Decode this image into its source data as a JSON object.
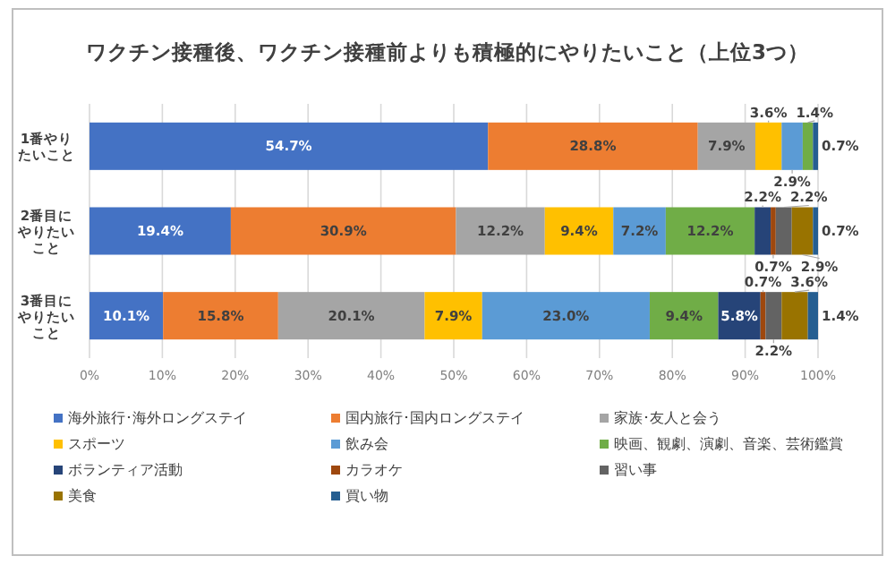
{
  "chart_data": {
    "type": "bar",
    "orientation": "horizontal",
    "stacked": true,
    "title": "ワクチン接種後、ワクチン接種前よりも積極的にやりたいこと（上位3つ）",
    "categories": [
      "1番やりたいこと",
      "2番目にやりたいこと",
      "3番目にやりたいこと"
    ],
    "xlim": [
      0,
      100
    ],
    "xticks": [
      {
        "value": 0,
        "label": "0%"
      },
      {
        "value": 10,
        "label": "10%"
      },
      {
        "value": 20,
        "label": "20%"
      },
      {
        "value": 30,
        "label": "30%"
      },
      {
        "value": 40,
        "label": "40%"
      },
      {
        "value": 50,
        "label": "50%"
      },
      {
        "value": 60,
        "label": "60%"
      },
      {
        "value": 70,
        "label": "70%"
      },
      {
        "value": 80,
        "label": "80%"
      },
      {
        "value": 90,
        "label": "90%"
      },
      {
        "value": 100,
        "label": "100%"
      }
    ],
    "grid": "x",
    "legend": "bottom",
    "series": [
      {
        "name": "海外旅行･海外ロングステイ",
        "color": "#4472c4",
        "values": [
          54.7,
          19.4,
          10.1
        ],
        "value_labels": [
          "54.7%",
          "19.4%",
          "10.1%"
        ]
      },
      {
        "name": "国内旅行･国内ロングステイ",
        "color": "#ed7d31",
        "values": [
          28.8,
          30.9,
          15.8
        ],
        "value_labels": [
          "28.8%",
          "30.9%",
          "15.8%"
        ]
      },
      {
        "name": "家族･友人と会う",
        "color": "#a5a5a5",
        "values": [
          7.9,
          12.2,
          20.1
        ],
        "value_labels": [
          "7.9%",
          "12.2%",
          "20.1%"
        ]
      },
      {
        "name": "スポーツ",
        "color": "#ffc000",
        "values": [
          3.6,
          9.4,
          7.9
        ],
        "value_labels": [
          "3.6%",
          "9.4%",
          "7.9%"
        ]
      },
      {
        "name": "飲み会",
        "color": "#5b9bd5",
        "values": [
          2.9,
          7.2,
          23.0
        ],
        "value_labels": [
          "2.9%",
          "7.2%",
          "23.0%"
        ]
      },
      {
        "name": "映画、観劇、演劇、音楽、芸術鑑賞",
        "color": "#70ad47",
        "values": [
          1.4,
          12.2,
          9.4
        ],
        "value_labels": [
          "1.4%",
          "12.2%",
          "9.4%"
        ]
      },
      {
        "name": "ボランティア活動",
        "color": "#264478",
        "values": [
          0,
          2.2,
          5.8
        ],
        "value_labels": [
          null,
          "2.2%",
          "5.8%"
        ]
      },
      {
        "name": "カラオケ",
        "color": "#9e480e",
        "values": [
          0,
          0.7,
          0.7
        ],
        "value_labels": [
          null,
          "0.7%",
          "0.7%"
        ]
      },
      {
        "name": "習い事",
        "color": "#636363",
        "values": [
          0,
          2.2,
          2.2
        ],
        "value_labels": [
          null,
          "2.2%",
          "2.2%"
        ]
      },
      {
        "name": "美食",
        "color": "#997300",
        "values": [
          0,
          2.9,
          3.6
        ],
        "value_labels": [
          null,
          "2.9%",
          "3.6%"
        ]
      },
      {
        "name": "買い物",
        "color": "#255e91",
        "values": [
          0.7,
          0.7,
          1.4
        ],
        "value_labels": [
          "0.7%",
          "0.7%",
          "1.4%"
        ]
      }
    ]
  }
}
